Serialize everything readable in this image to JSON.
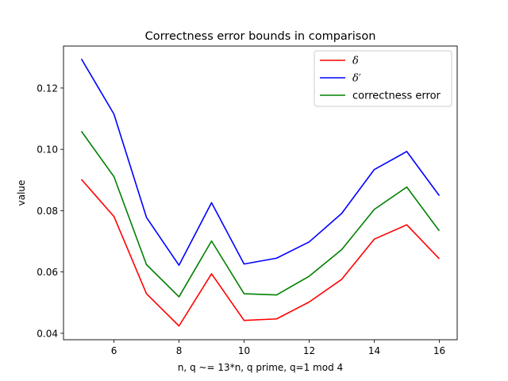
{
  "chart_data": {
    "type": "line",
    "title": "Correctness error bounds in comparison",
    "xlabel": "n, q ~= 13*n, q prime, q=1 mod 4",
    "ylabel": "value",
    "x": [
      5,
      6,
      7,
      8,
      9,
      10,
      11,
      12,
      13,
      14,
      15,
      16
    ],
    "xlim": [
      4.45,
      16.55
    ],
    "ylim": [
      0.0379,
      0.1337
    ],
    "xticks": [
      6,
      8,
      10,
      12,
      14,
      16
    ],
    "yticks": [
      0.04,
      0.06,
      0.08,
      0.1,
      0.12
    ],
    "ytick_labels": [
      "0.04",
      "0.06",
      "0.08",
      "0.10",
      "0.12"
    ],
    "grid": false,
    "legend_position": "top-right",
    "series": [
      {
        "name": "δ",
        "color": "#ff0000",
        "values": [
          0.0902,
          0.0781,
          0.0529,
          0.0424,
          0.0594,
          0.0442,
          0.0447,
          0.0502,
          0.0576,
          0.0707,
          0.0754,
          0.0643
        ]
      },
      {
        "name": "δ′",
        "color": "#0000ff",
        "values": [
          0.1295,
          0.1115,
          0.0778,
          0.0622,
          0.0826,
          0.0626,
          0.0645,
          0.0698,
          0.0791,
          0.0934,
          0.0993,
          0.0849
        ]
      },
      {
        "name": "correctness error",
        "color": "#008000",
        "values": [
          0.1059,
          0.0911,
          0.0624,
          0.0519,
          0.0701,
          0.0529,
          0.0525,
          0.0586,
          0.0673,
          0.0804,
          0.0877,
          0.0734
        ]
      }
    ]
  }
}
